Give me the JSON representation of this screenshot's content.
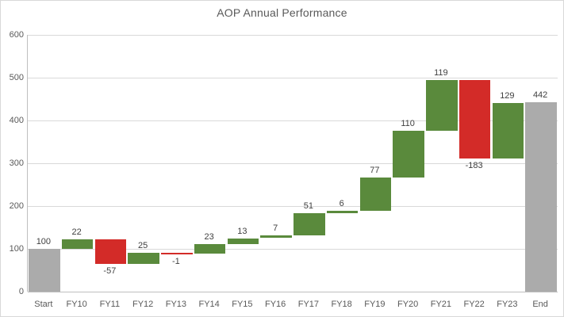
{
  "chart_data": {
    "type": "bar",
    "subtype": "waterfall",
    "title": "AOP Annual Performance",
    "categories": [
      "Start",
      "FY10",
      "FY11",
      "FY12",
      "FY13",
      "FY14",
      "FY15",
      "FY16",
      "FY17",
      "FY18",
      "FY19",
      "FY20",
      "FY21",
      "FY22",
      "FY23",
      "End"
    ],
    "values": [
      100,
      22,
      -57,
      25,
      -1,
      23,
      13,
      7,
      51,
      6,
      77,
      110,
      119,
      -183,
      129,
      442
    ],
    "bar_types": [
      "total",
      "delta",
      "delta",
      "delta",
      "delta",
      "delta",
      "delta",
      "delta",
      "delta",
      "delta",
      "delta",
      "delta",
      "delta",
      "delta",
      "delta",
      "total"
    ],
    "labels": [
      "100",
      "22",
      "-57",
      "25",
      "-1",
      "23",
      "13",
      "7",
      "51",
      "6",
      "77",
      "110",
      "119",
      "-183",
      "129",
      "442"
    ],
    "xlabel": "",
    "ylabel": "",
    "ylim": [
      0,
      600
    ],
    "y_ticks": [
      0,
      100,
      200,
      300,
      400,
      500,
      600
    ],
    "grid": true,
    "legend": "none",
    "colors": {
      "increase": "#5A8A3C",
      "decrease": "#D32B28",
      "total": "#ABABAB",
      "gridline": "#D9D9D9",
      "axis_line": "#BFBFBF",
      "title_text": "#595959",
      "axis_text": "#595959",
      "label_text": "#404040",
      "background": "#FFFFFF",
      "border": "#D9D9D9"
    }
  }
}
